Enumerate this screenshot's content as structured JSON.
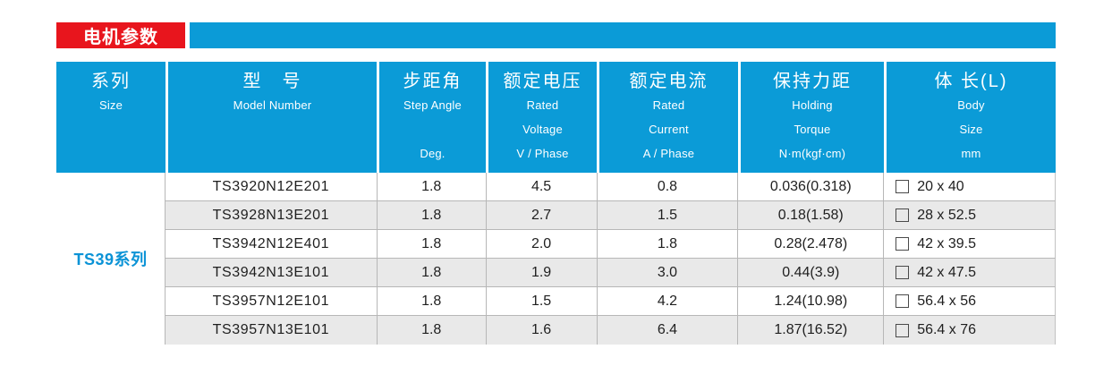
{
  "banner": {
    "title": "电机参数"
  },
  "colors": {
    "header_blue": "#0b9bd7",
    "banner_red": "#e8151d",
    "stripe_gray": "#e9e9e9",
    "series_blue": "#0b93d6"
  },
  "table": {
    "columns": [
      {
        "zh": "系列",
        "en": [
          "Size"
        ]
      },
      {
        "zh": "型　号",
        "en": [
          "Model Number"
        ]
      },
      {
        "zh": "步距角",
        "en": [
          "Step Angle",
          "",
          "Deg."
        ]
      },
      {
        "zh": "额定电压",
        "en": [
          "Rated",
          "Voltage",
          "V / Phase"
        ]
      },
      {
        "zh": "额定电流",
        "en": [
          "Rated",
          "Current",
          "A / Phase"
        ]
      },
      {
        "zh": "保持力距",
        "en": [
          "Holding",
          "Torque",
          "N·m(kgf·cm)"
        ]
      },
      {
        "zh": "体 长(L)",
        "en": [
          "Body",
          "Size",
          "mm"
        ]
      }
    ],
    "series_label": "TS39系列",
    "rows": [
      {
        "model": "TS3920N12E201",
        "step_angle": "1.8",
        "rated_voltage": "4.5",
        "rated_current": "0.8",
        "holding_torque": "0.036(0.318)",
        "body_size": "20 x 40"
      },
      {
        "model": "TS3928N13E201",
        "step_angle": "1.8",
        "rated_voltage": "2.7",
        "rated_current": "1.5",
        "holding_torque": "0.18(1.58)",
        "body_size": "28 x 52.5"
      },
      {
        "model": "TS3942N12E401",
        "step_angle": "1.8",
        "rated_voltage": "2.0",
        "rated_current": "1.8",
        "holding_torque": "0.28(2.478)",
        "body_size": "42 x 39.5"
      },
      {
        "model": "TS3942N13E101",
        "step_angle": "1.8",
        "rated_voltage": "1.9",
        "rated_current": "3.0",
        "holding_torque": "0.44(3.9)",
        "body_size": "42 x 47.5"
      },
      {
        "model": "TS3957N12E101",
        "step_angle": "1.8",
        "rated_voltage": "1.5",
        "rated_current": "4.2",
        "holding_torque": "1.24(10.98)",
        "body_size": "56.4 x 56"
      },
      {
        "model": "TS3957N13E101",
        "step_angle": "1.8",
        "rated_voltage": "1.6",
        "rated_current": "6.4",
        "holding_torque": "1.87(16.52)",
        "body_size": "56.4 x 76"
      }
    ]
  }
}
